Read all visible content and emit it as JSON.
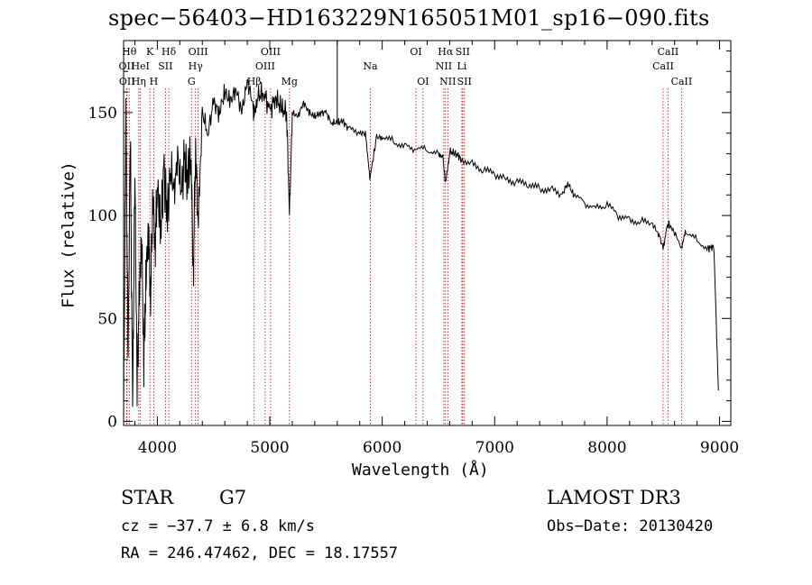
{
  "chart_data": {
    "type": "line",
    "title": "spec−56403−HD163229N165051M01_sp16−090.fits",
    "xlabel": "Wavelength (Å)",
    "ylabel": "Flux (relative)",
    "xlim": [
      3700,
      9100
    ],
    "ylim": [
      -2,
      185
    ],
    "xticks": [
      4000,
      5000,
      6000,
      7000,
      8000,
      9000
    ],
    "yticks": [
      0,
      50,
      100,
      150
    ],
    "spectrum": {
      "name": "flux",
      "x": [
        3700,
        3720,
        3740,
        3760,
        3780,
        3800,
        3820,
        3840,
        3860,
        3880,
        3900,
        3920,
        3940,
        3960,
        3980,
        4000,
        4030,
        4060,
        4090,
        4120,
        4150,
        4180,
        4210,
        4240,
        4270,
        4300,
        4320,
        4340,
        4360,
        4400,
        4450,
        4500,
        4550,
        4600,
        4650,
        4700,
        4750,
        4800,
        4850,
        4861,
        4900,
        4950,
        5000,
        5050,
        5100,
        5150,
        5175,
        5200,
        5250,
        5300,
        5350,
        5400,
        5450,
        5500,
        5550,
        5600,
        5650,
        5700,
        5800,
        5850,
        5890,
        5950,
        6000,
        6100,
        6200,
        6300,
        6400,
        6500,
        6540,
        6563,
        6600,
        6650,
        6700,
        6800,
        6900,
        7000,
        7100,
        7200,
        7300,
        7400,
        7500,
        7600,
        7650,
        7700,
        7800,
        7900,
        8000,
        8100,
        8200,
        8300,
        8400,
        8450,
        8498,
        8542,
        8600,
        8662,
        8700,
        8800,
        8900,
        8950,
        8990
      ],
      "y": [
        0,
        148,
        30,
        140,
        5,
        120,
        20,
        60,
        90,
        30,
        70,
        95,
        60,
        110,
        85,
        115,
        95,
        120,
        100,
        125,
        110,
        130,
        112,
        125,
        120,
        130,
        70,
        135,
        100,
        150,
        140,
        155,
        150,
        160,
        155,
        162,
        150,
        165,
        155,
        148,
        158,
        160,
        150,
        158,
        152,
        150,
        100,
        150,
        148,
        155,
        150,
        148,
        150,
        150,
        145,
        145,
        146,
        142,
        140,
        140,
        118,
        138,
        138,
        136,
        134,
        132,
        132,
        130,
        128,
        115,
        131,
        130,
        128,
        125,
        122,
        120,
        118,
        116,
        115,
        113,
        113,
        110,
        116,
        110,
        106,
        104,
        105,
        100,
        98,
        97,
        96,
        92,
        85,
        96,
        92,
        84,
        92,
        88,
        84,
        85,
        15
      ]
    },
    "lines": [
      {
        "x": 3727,
        "label": "OII",
        "row": 2
      },
      {
        "x": 3730,
        "label": "OII",
        "row": 3
      },
      {
        "x": 3750,
        "label": "Hθ",
        "row": 1
      },
      {
        "x": 3835,
        "label": "Hη",
        "row": 3
      },
      {
        "x": 3850,
        "label": "HeI",
        "row": 2
      },
      {
        "x": 3934,
        "label": "K",
        "row": 1
      },
      {
        "x": 3968,
        "label": "H",
        "row": 3
      },
      {
        "x": 4072,
        "label": "SII",
        "row": 2
      },
      {
        "x": 4102,
        "label": "Hδ",
        "row": 1
      },
      {
        "x": 4304,
        "label": "G",
        "row": 3
      },
      {
        "x": 4340,
        "label": "Hγ",
        "row": 2
      },
      {
        "x": 4363,
        "label": "OIII",
        "row": 1
      },
      {
        "x": 4861,
        "label": "Hβ",
        "row": 3
      },
      {
        "x": 4959,
        "label": "OIII",
        "row": 2
      },
      {
        "x": 5007,
        "label": "OIII",
        "row": 1
      },
      {
        "x": 5175,
        "label": "Mg",
        "row": 3
      },
      {
        "x": 5894,
        "label": "Na",
        "row": 2
      },
      {
        "x": 6300,
        "label": "OI",
        "row": 1
      },
      {
        "x": 6363,
        "label": "OI",
        "row": 3
      },
      {
        "x": 6548,
        "label": "NII",
        "row": 2
      },
      {
        "x": 6563,
        "label": "Hα",
        "row": 1
      },
      {
        "x": 6583,
        "label": "NII",
        "row": 3
      },
      {
        "x": 6708,
        "label": "Li",
        "row": 2
      },
      {
        "x": 6716,
        "label": "SII",
        "row": 1
      },
      {
        "x": 6731,
        "label": "SII",
        "row": 3
      },
      {
        "x": 8498,
        "label": "CaII",
        "row": 2
      },
      {
        "x": 8542,
        "label": "CaII",
        "row": 1
      },
      {
        "x": 8662,
        "label": "CaII",
        "row": 3
      }
    ]
  },
  "info": {
    "class_label": "STAR",
    "subclass": "G7",
    "cz": "cz = −37.7 ± 6.8 km/s",
    "radec": "RA = 246.47462, DEC =  18.17557",
    "survey": "LAMOST DR3",
    "obs_date": "Obs−Date: 20130420"
  },
  "colors": {
    "axis": "#000000",
    "spectrum": "#000000",
    "line_marker": "#cc0000"
  }
}
